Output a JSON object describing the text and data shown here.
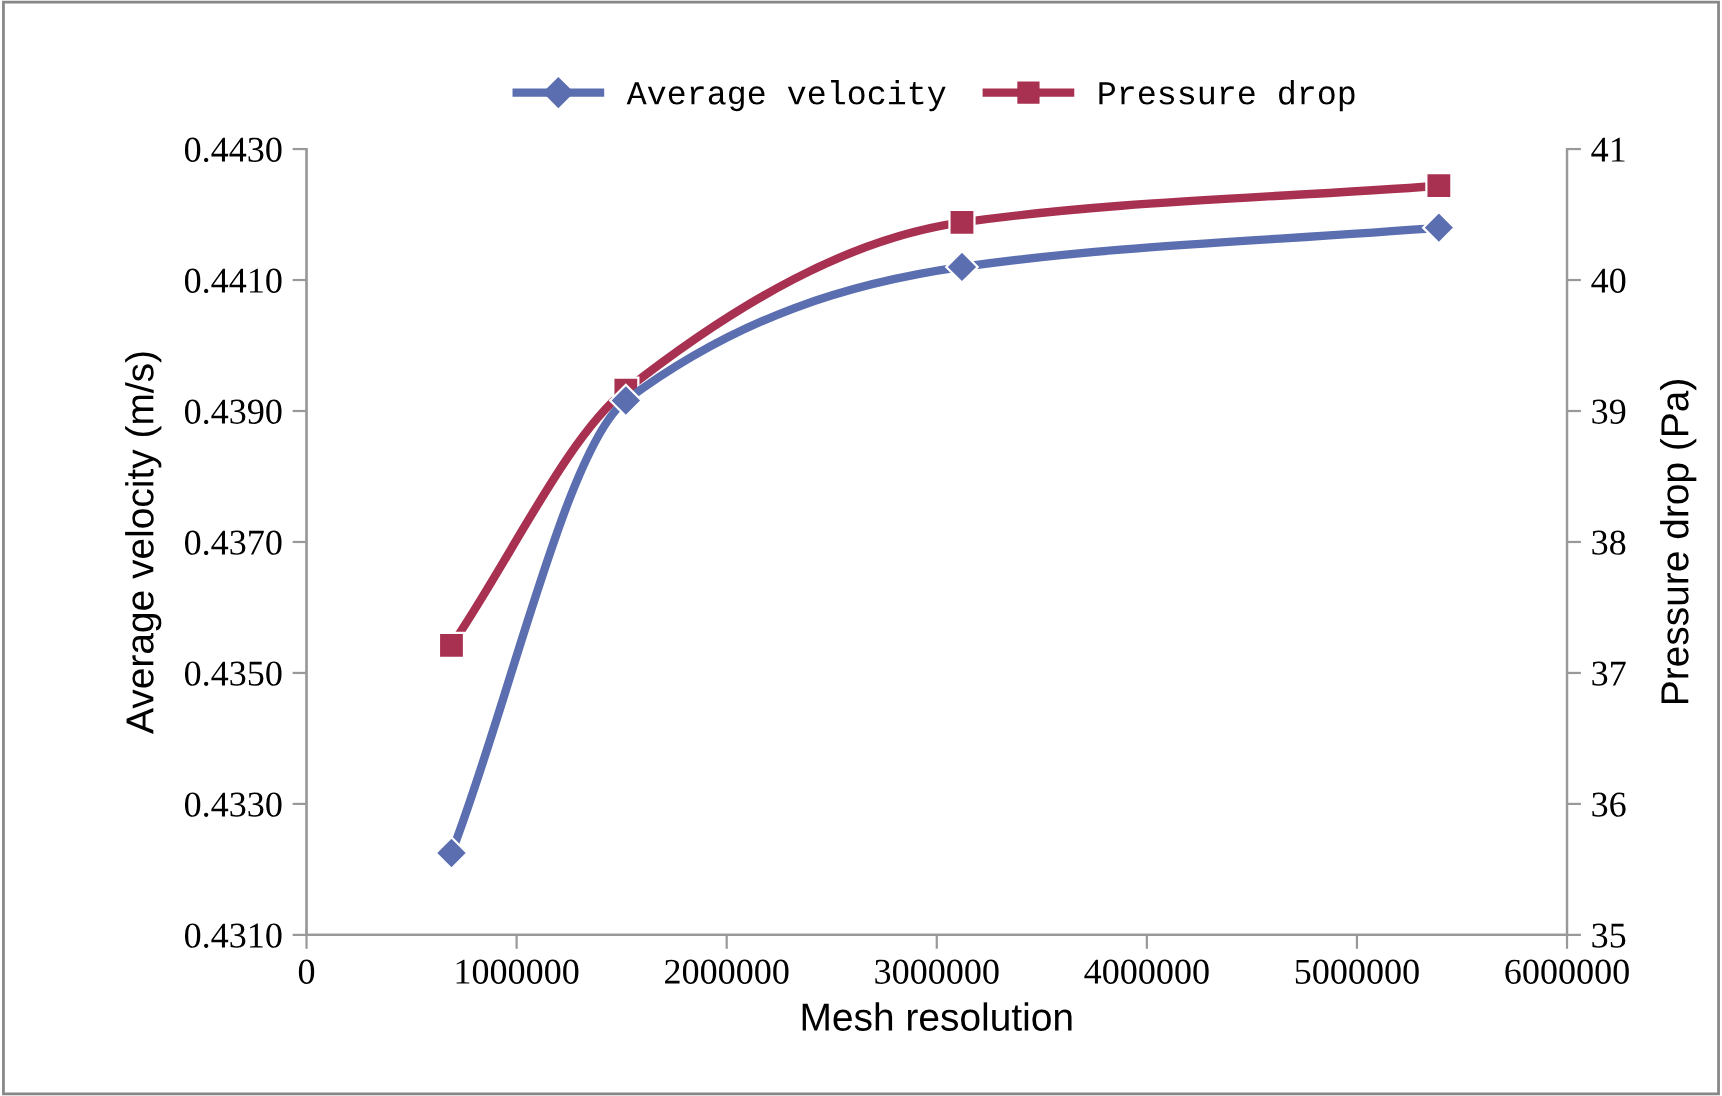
{
  "chart_data": {
    "type": "line",
    "xlabel": "Mesh resolution",
    "ylabel": "Average velocity (m/s)",
    "y2label": "Pressure drop (Pa)",
    "x": [
      690000,
      1520000,
      3120000,
      5390000
    ],
    "series": [
      {
        "name": "Average velocity",
        "color": "#5b6eb0",
        "marker": "diamond",
        "values": [
          0.43225,
          0.43916,
          0.4412,
          0.4418
        ]
      },
      {
        "name": "Pressure drop",
        "color": "#a83050",
        "marker": "square",
        "axis": "y2",
        "values": [
          37.21,
          39.16,
          40.44,
          40.72
        ]
      }
    ],
    "xlim": [
      0,
      6000000
    ],
    "xticks": [
      0,
      1000000,
      2000000,
      3000000,
      4000000,
      5000000,
      6000000
    ],
    "ylim": [
      0.431,
      0.443
    ],
    "yticks": [
      {
        "value": 0.431,
        "label": "0.4310"
      },
      {
        "value": 0.433,
        "label": "0.4330"
      },
      {
        "value": 0.435,
        "label": "0.4350"
      },
      {
        "value": 0.437,
        "label": "0.4370"
      },
      {
        "value": 0.439,
        "label": "0.4390"
      },
      {
        "value": 0.441,
        "label": "0.4410"
      },
      {
        "value": 0.443,
        "label": "0.4430"
      }
    ],
    "y2lim": [
      35,
      41
    ],
    "y2ticks": [
      35,
      36,
      37,
      38,
      39,
      40,
      41
    ],
    "grid": false,
    "legend": "top",
    "line_style": "solid"
  }
}
